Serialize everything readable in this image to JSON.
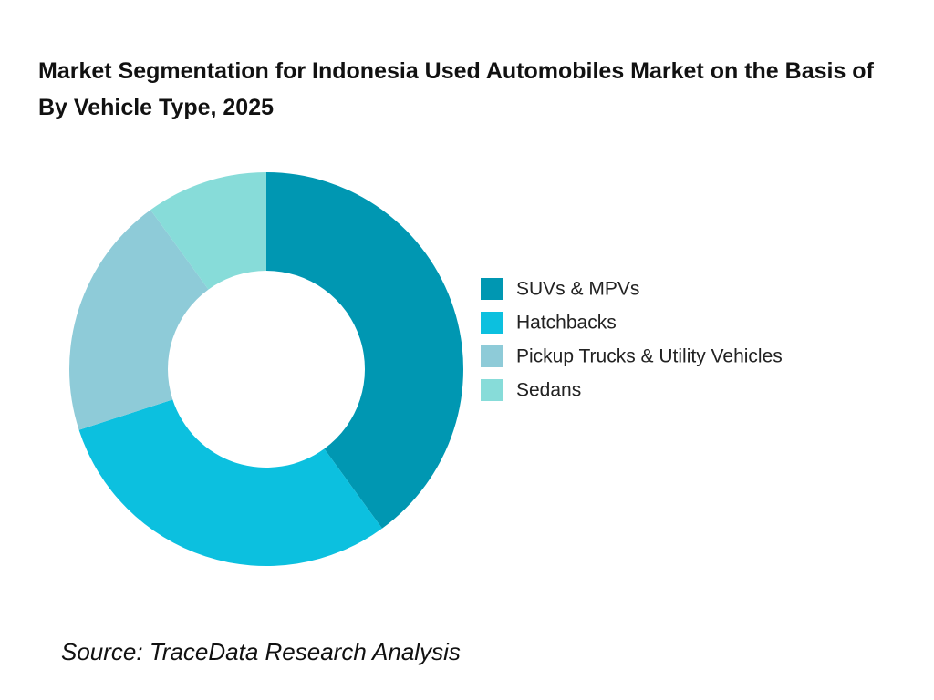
{
  "chart_data": {
    "type": "donut",
    "title": "Market Segmentation for Indonesia Used Automobiles Market on the Basis of  By Vehicle Type, 2025",
    "categories": [
      "SUVs & MPVs",
      "Hatchbacks",
      "Pickup Trucks & Utility Vehicles",
      "Sedans"
    ],
    "values": [
      40,
      30,
      20,
      10
    ],
    "colors": [
      "#0097b2",
      "#0cc0df",
      "#8ecbd8",
      "#87dcd9"
    ],
    "legend": "right",
    "source": "Source: TraceData Research Analysis"
  }
}
